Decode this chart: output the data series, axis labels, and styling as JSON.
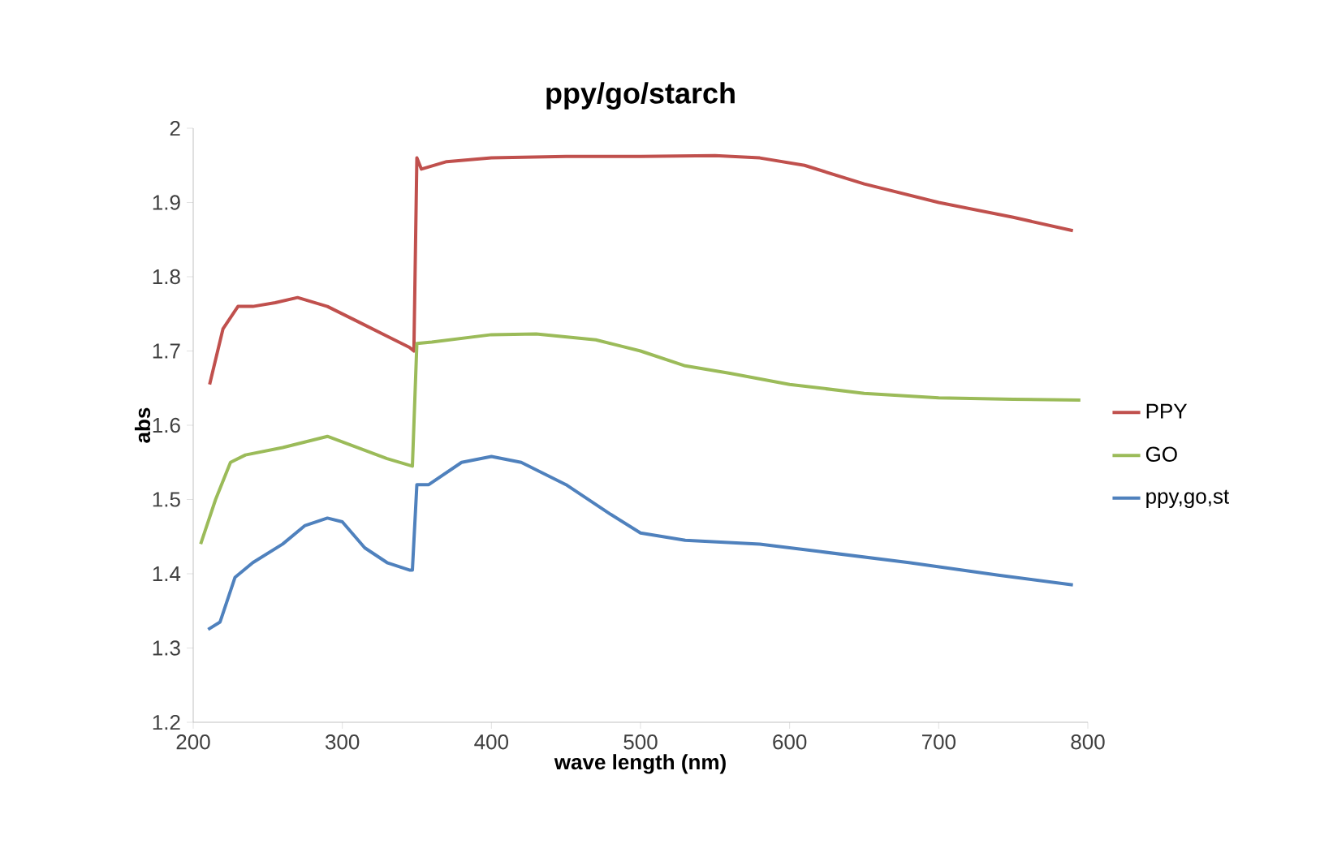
{
  "chart_data": {
    "type": "line",
    "title": "ppy/go/starch",
    "xlabel": "wave length (nm)",
    "ylabel": "abs",
    "xlim": [
      200,
      800
    ],
    "ylim": [
      1.2,
      2
    ],
    "xticks": [
      200,
      300,
      400,
      500,
      600,
      700,
      800
    ],
    "yticks": [
      1.2,
      1.3,
      1.4,
      1.5,
      1.6,
      1.7,
      1.8,
      1.9,
      2
    ],
    "grid": false,
    "legend": "right",
    "marker": "none",
    "line_style": "solid",
    "series": [
      {
        "name": "PPY",
        "color": "#c0504d",
        "x": [
          211,
          220,
          230,
          240,
          255,
          270,
          290,
          310,
          330,
          345,
          348,
          350,
          353,
          370,
          400,
          450,
          500,
          550,
          580,
          610,
          650,
          700,
          750,
          790
        ],
        "values": [
          1.655,
          1.73,
          1.76,
          1.76,
          1.765,
          1.772,
          1.76,
          1.74,
          1.72,
          1.705,
          1.7,
          1.96,
          1.945,
          1.955,
          1.96,
          1.962,
          1.962,
          1.963,
          1.96,
          1.95,
          1.925,
          1.9,
          1.88,
          1.862
        ]
      },
      {
        "name": "GO",
        "color": "#9bbb59",
        "x": [
          205,
          215,
          225,
          235,
          260,
          290,
          310,
          330,
          347,
          350,
          360,
          400,
          430,
          470,
          500,
          530,
          560,
          600,
          650,
          700,
          750,
          795
        ],
        "values": [
          1.44,
          1.5,
          1.55,
          1.56,
          1.57,
          1.585,
          1.57,
          1.555,
          1.545,
          1.71,
          1.712,
          1.722,
          1.723,
          1.715,
          1.7,
          1.68,
          1.67,
          1.655,
          1.643,
          1.637,
          1.635,
          1.634
        ]
      },
      {
        "name": "ppy,go,st",
        "color": "#4f81bd",
        "x": [
          210,
          218,
          228,
          240,
          260,
          275,
          290,
          300,
          315,
          330,
          345,
          347,
          350,
          358,
          380,
          400,
          420,
          450,
          480,
          500,
          530,
          580,
          620,
          680,
          740,
          790
        ],
        "values": [
          1.325,
          1.335,
          1.395,
          1.415,
          1.44,
          1.465,
          1.475,
          1.47,
          1.435,
          1.415,
          1.405,
          1.405,
          1.52,
          1.52,
          1.55,
          1.558,
          1.55,
          1.52,
          1.48,
          1.455,
          1.445,
          1.44,
          1.43,
          1.415,
          1.398,
          1.385
        ]
      }
    ]
  }
}
